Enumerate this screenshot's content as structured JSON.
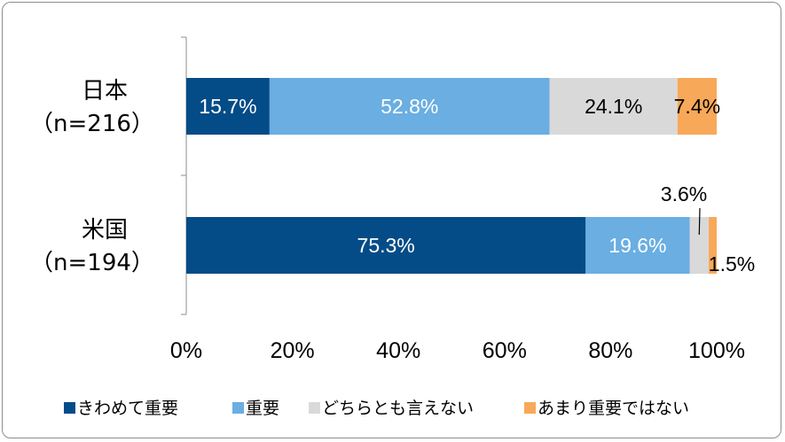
{
  "colors": {
    "series": [
      "#044c87",
      "#6aaee2",
      "#d9d9d9",
      "#f8a859"
    ],
    "axis": "#8c8c8c",
    "frame": "#8c8c8c"
  },
  "chart_data": {
    "type": "bar",
    "orientation": "horizontal",
    "stacked": "percent",
    "categories": [
      {
        "name": "日本",
        "n": "（n=216）"
      },
      {
        "name": "米国",
        "n": "（n=194）"
      }
    ],
    "series": [
      {
        "name": "きわめて重要",
        "values": [
          15.7,
          75.3
        ],
        "labels": [
          "15.7%",
          "75.3%"
        ],
        "label_color": "#ffffff"
      },
      {
        "name": "重要",
        "values": [
          52.8,
          19.6
        ],
        "labels": [
          "52.8%",
          "19.6%"
        ],
        "label_color": "#ffffff"
      },
      {
        "name": "どちらとも言えない",
        "values": [
          24.1,
          3.6
        ],
        "labels": [
          "24.1%",
          "3.6%"
        ],
        "label_color": "#000000"
      },
      {
        "name": "あまり重要ではない",
        "values": [
          7.4,
          1.5
        ],
        "labels": [
          "7.4%",
          "1.5%"
        ],
        "label_color": "#000000"
      }
    ],
    "x_ticks": [
      "0%",
      "20%",
      "40%",
      "60%",
      "80%",
      "100%"
    ],
    "xlim": [
      0,
      100
    ],
    "grid": false,
    "legend_position": "bottom"
  }
}
